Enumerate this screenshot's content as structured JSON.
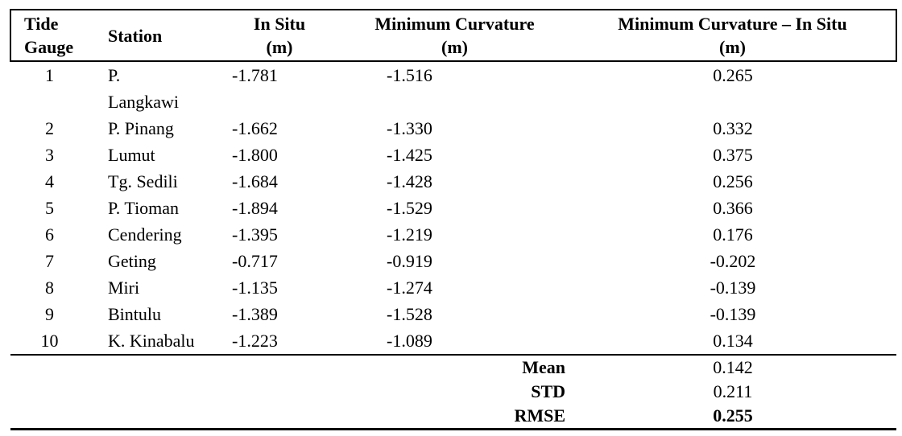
{
  "table": {
    "columns": {
      "tide_gauge": "Tide\nGauge",
      "station": "Station",
      "in_situ": "In Situ\n(m)",
      "min_curvature": "Minimum Curvature\n(m)",
      "difference": "Minimum Curvature – In Situ\n(m)"
    },
    "rows": [
      {
        "tide_gauge": "1",
        "station": "P.\nLangkawi",
        "in_situ": "-1.781",
        "min_curvature": "-1.516",
        "difference": "0.265"
      },
      {
        "tide_gauge": "2",
        "station": "P. Pinang",
        "in_situ": "-1.662",
        "min_curvature": "-1.330",
        "difference": "0.332"
      },
      {
        "tide_gauge": "3",
        "station": "Lumut",
        "in_situ": "-1.800",
        "min_curvature": "-1.425",
        "difference": "0.375"
      },
      {
        "tide_gauge": "4",
        "station": "Tg. Sedili",
        "in_situ": "-1.684",
        "min_curvature": "-1.428",
        "difference": "0.256"
      },
      {
        "tide_gauge": "5",
        "station": "P. Tioman",
        "in_situ": "-1.894",
        "min_curvature": "-1.529",
        "difference": "0.366"
      },
      {
        "tide_gauge": "6",
        "station": "Cendering",
        "in_situ": "-1.395",
        "min_curvature": "-1.219",
        "difference": "0.176"
      },
      {
        "tide_gauge": "7",
        "station": "Geting",
        "in_situ": "-0.717",
        "min_curvature": "-0.919",
        "difference": "-0.202"
      },
      {
        "tide_gauge": "8",
        "station": "Miri",
        "in_situ": "-1.135",
        "min_curvature": "-1.274",
        "difference": "-0.139"
      },
      {
        "tide_gauge": "9",
        "station": "Bintulu",
        "in_situ": "-1.389",
        "min_curvature": "-1.528",
        "difference": "-0.139"
      },
      {
        "tide_gauge": "10",
        "station": "K. Kinabalu",
        "in_situ": "-1.223",
        "min_curvature": "-1.089",
        "difference": "0.134"
      }
    ],
    "summary": [
      {
        "label": "Mean",
        "value": "0.142"
      },
      {
        "label": "STD",
        "value": "0.211"
      },
      {
        "label": "RMSE",
        "value": "0.255"
      }
    ]
  }
}
